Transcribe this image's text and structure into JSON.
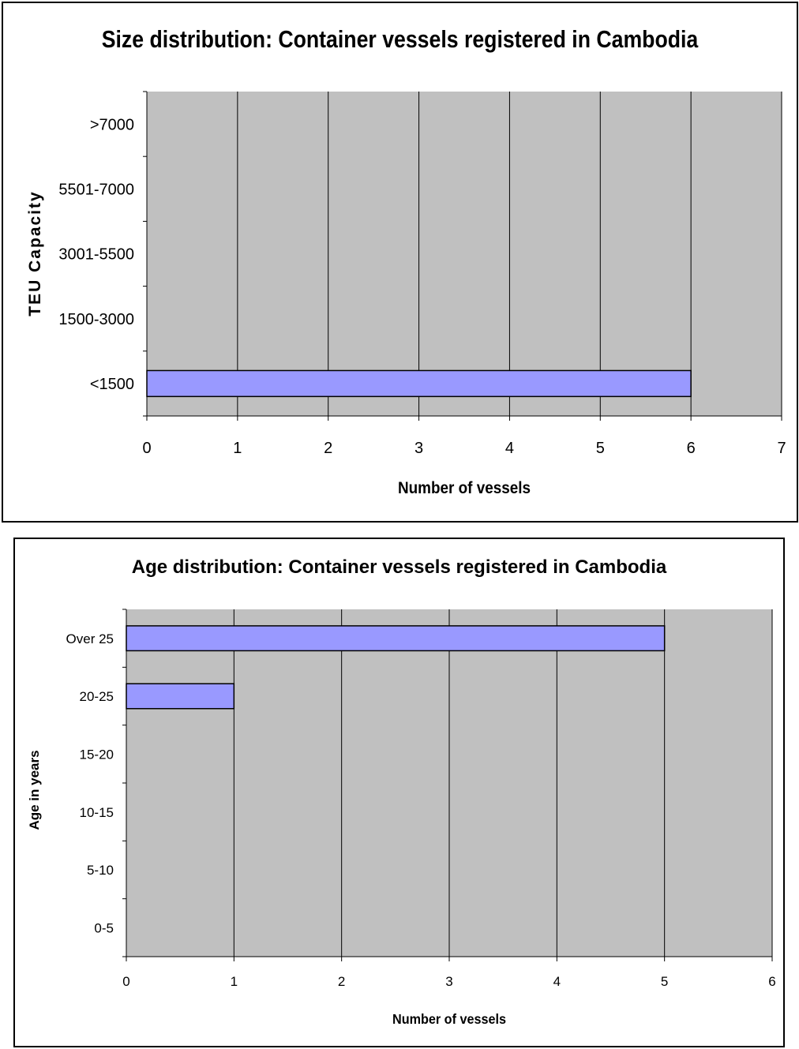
{
  "chart_data": [
    {
      "type": "bar",
      "orientation": "horizontal",
      "title": "Size distribution: Container vessels registered in Cambodia",
      "xlabel": "Number of vessels",
      "ylabel": "TEU Capacity",
      "categories": [
        "<1500",
        "1500-3000",
        "3001-5500",
        "5501-7000",
        ">7000"
      ],
      "values": [
        6,
        0,
        0,
        0,
        0
      ],
      "xlim": [
        0,
        7
      ],
      "x_ticks": [
        "0",
        "1",
        "2",
        "3",
        "4",
        "5",
        "6",
        "7"
      ],
      "grid": "vertical",
      "plot_background": "#c0c0c0",
      "bar_color": "#9999ff",
      "legend": "none"
    },
    {
      "type": "bar",
      "orientation": "horizontal",
      "title": "Age distribution: Container vessels registered in Cambodia",
      "xlabel": "Number of vessels",
      "ylabel": "Age in years",
      "categories": [
        "0-5",
        "5-10",
        "10-15",
        "15-20",
        "20-25",
        "Over 25"
      ],
      "values": [
        0,
        0,
        0,
        0,
        1,
        5
      ],
      "xlim": [
        0,
        6
      ],
      "x_ticks": [
        "0",
        "1",
        "2",
        "3",
        "4",
        "5",
        "6"
      ],
      "grid": "vertical",
      "plot_background": "#c0c0c0",
      "bar_color": "#9999ff",
      "legend": "none"
    }
  ]
}
